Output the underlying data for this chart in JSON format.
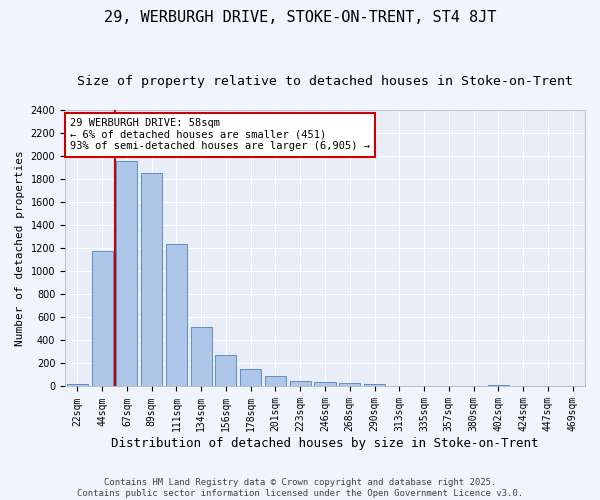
{
  "title": "29, WERBURGH DRIVE, STOKE-ON-TRENT, ST4 8JT",
  "subtitle": "Size of property relative to detached houses in Stoke-on-Trent",
  "xlabel": "Distribution of detached houses by size in Stoke-on-Trent",
  "ylabel": "Number of detached properties",
  "categories": [
    "22sqm",
    "44sqm",
    "67sqm",
    "89sqm",
    "111sqm",
    "134sqm",
    "156sqm",
    "178sqm",
    "201sqm",
    "223sqm",
    "246sqm",
    "268sqm",
    "290sqm",
    "313sqm",
    "335sqm",
    "357sqm",
    "380sqm",
    "402sqm",
    "424sqm",
    "447sqm",
    "469sqm"
  ],
  "values": [
    25,
    1175,
    1960,
    1850,
    1240,
    515,
    275,
    155,
    90,
    50,
    40,
    30,
    18,
    5,
    0,
    0,
    0,
    15,
    0,
    0,
    0
  ],
  "bar_color": "#aec6e8",
  "bar_edge_color": "#5b8fc9",
  "background_color": "#e8edf8",
  "fig_background_color": "#f0f4fc",
  "grid_color": "#ffffff",
  "property_line_x": 1.5,
  "property_line_color": "#cc0000",
  "annotation_text": "29 WERBURGH DRIVE: 58sqm\n← 6% of detached houses are smaller (451)\n93% of semi-detached houses are larger (6,905) →",
  "annotation_box_color": "#cc0000",
  "ylim": [
    0,
    2400
  ],
  "yticks": [
    0,
    200,
    400,
    600,
    800,
    1000,
    1200,
    1400,
    1600,
    1800,
    2000,
    2200,
    2400
  ],
  "footer_text": "Contains HM Land Registry data © Crown copyright and database right 2025.\nContains public sector information licensed under the Open Government Licence v3.0.",
  "title_fontsize": 11,
  "subtitle_fontsize": 9.5,
  "xlabel_fontsize": 9,
  "ylabel_fontsize": 8,
  "tick_fontsize": 7,
  "annotation_fontsize": 7.5,
  "footer_fontsize": 6.5
}
